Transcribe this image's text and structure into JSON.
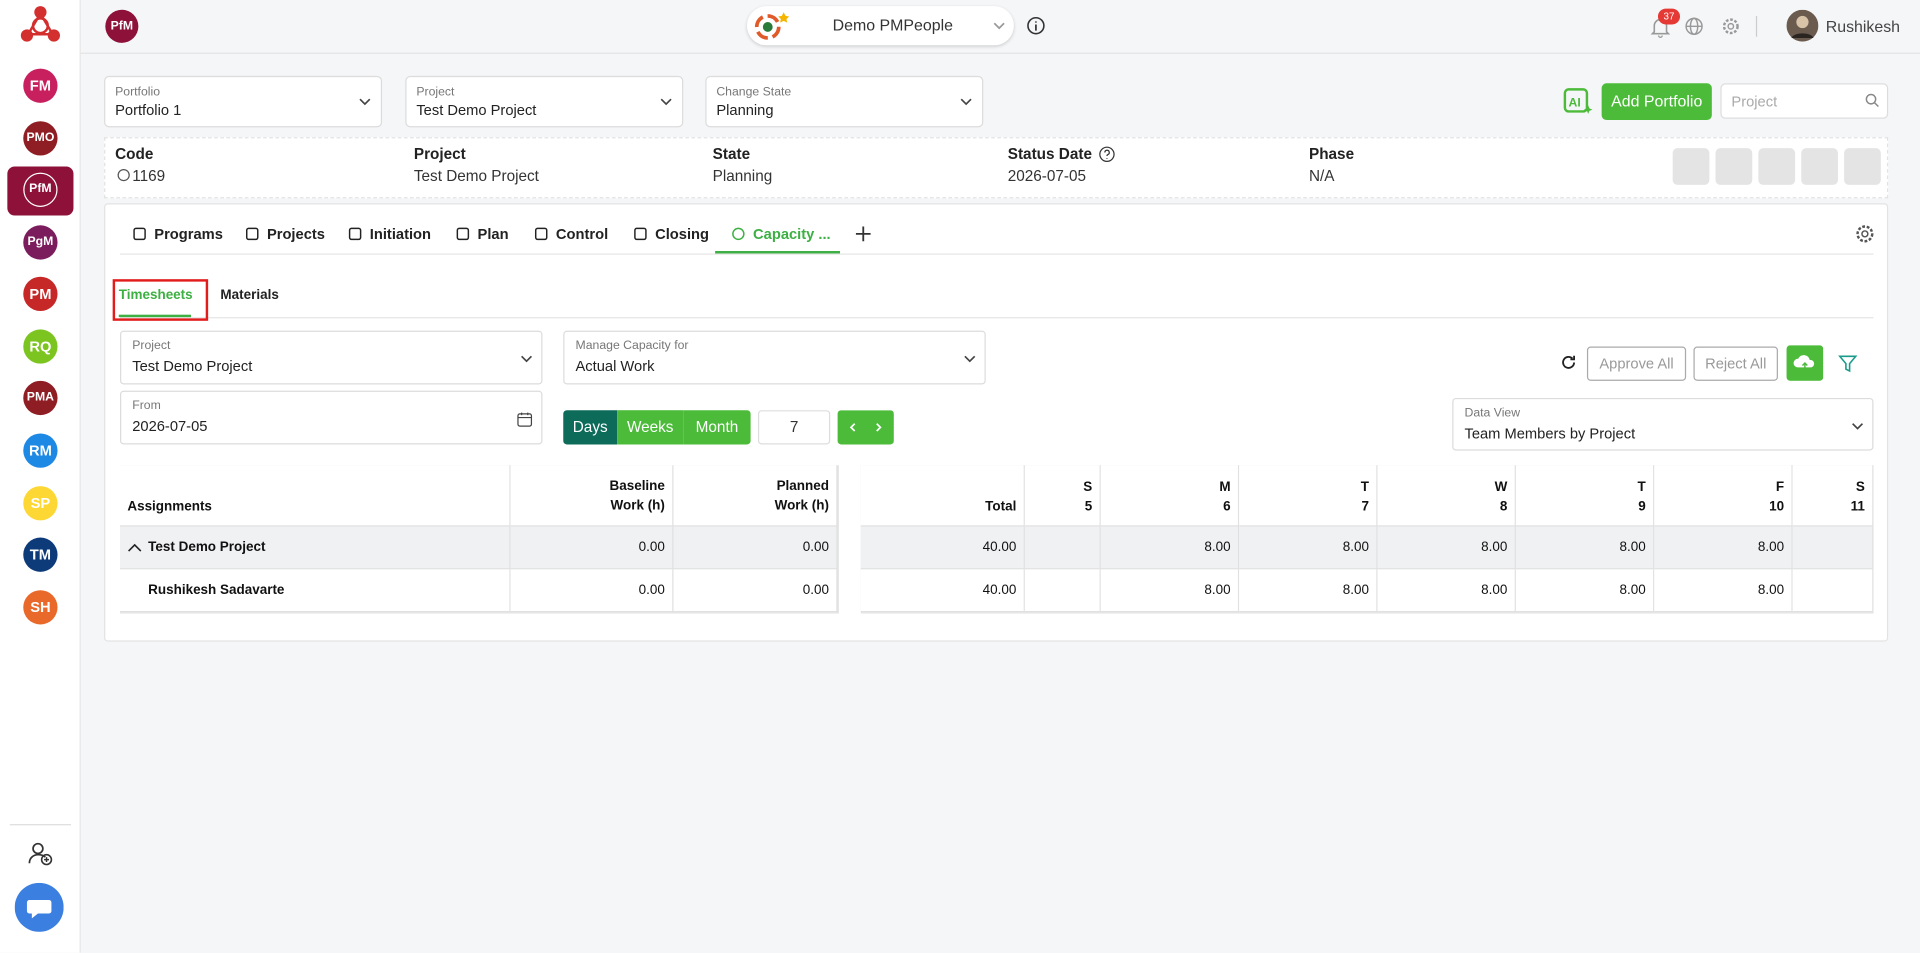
{
  "sidebar": {
    "items": [
      "FM",
      "PMO",
      "PfM",
      "PgM",
      "PM",
      "RQ",
      "PMA",
      "RM",
      "SP",
      "TM",
      "SH"
    ]
  },
  "topbar": {
    "module": "PfM",
    "workspace": "Demo PMPeople",
    "notifications": 37,
    "user": "Rushikesh"
  },
  "filters": [
    {
      "label": "Portfolio",
      "value": "Portfolio 1"
    },
    {
      "label": "Project",
      "value": "Test Demo Project"
    },
    {
      "label": "Change State",
      "value": "Planning"
    }
  ],
  "add_button": "Add Portfolio",
  "search_placeholder": "Project",
  "summary": [
    {
      "label": "Code",
      "value": "1169"
    },
    {
      "label": "Project",
      "value": "Test Demo Project"
    },
    {
      "label": "State",
      "value": "Planning"
    },
    {
      "label": "Status Date",
      "value": "2026-07-05"
    },
    {
      "label": "Phase",
      "value": "N/A"
    }
  ],
  "tabs": [
    "Programs",
    "Projects",
    "Initiation",
    "Plan",
    "Control",
    "Closing",
    "Capacity ..."
  ],
  "subtabs": [
    "Timesheets",
    "Materials"
  ],
  "form": {
    "project": {
      "label": "Project",
      "value": "Test Demo Project"
    },
    "capacity": {
      "label": "Manage Capacity for",
      "value": "Actual Work"
    },
    "from": {
      "label": "From",
      "value": "2026-07-05"
    },
    "data_view": {
      "label": "Data View",
      "value": "Team Members by Project"
    }
  },
  "buttons": {
    "approve": "Approve All",
    "reject": "Reject All"
  },
  "periods": [
    "Days",
    "Weeks",
    "Month"
  ],
  "period_count": 7,
  "table": {
    "columns": [
      "Assignments",
      "Baseline Work (h)",
      "Planned Work (h)"
    ],
    "total_label": "Total",
    "days": [
      {
        "letter": "S",
        "day": 5
      },
      {
        "letter": "M",
        "day": 6
      },
      {
        "letter": "T",
        "day": 7
      },
      {
        "letter": "W",
        "day": 8
      },
      {
        "letter": "T",
        "day": 9
      },
      {
        "letter": "F",
        "day": 10
      },
      {
        "letter": "S",
        "day": 11
      }
    ],
    "rows": [
      {
        "name": "Test Demo Project",
        "baseline": "0.00",
        "planned": "0.00",
        "total": "40.00",
        "hours": [
          null,
          "8.00",
          "8.00",
          "8.00",
          "8.00",
          "8.00",
          null
        ]
      },
      {
        "name": "Rushikesh Sadavarte",
        "baseline": "0.00",
        "planned": "0.00",
        "total": "40.00",
        "hours": [
          null,
          "8.00",
          "8.00",
          "8.00",
          "8.00",
          "8.00",
          null
        ]
      }
    ]
  }
}
